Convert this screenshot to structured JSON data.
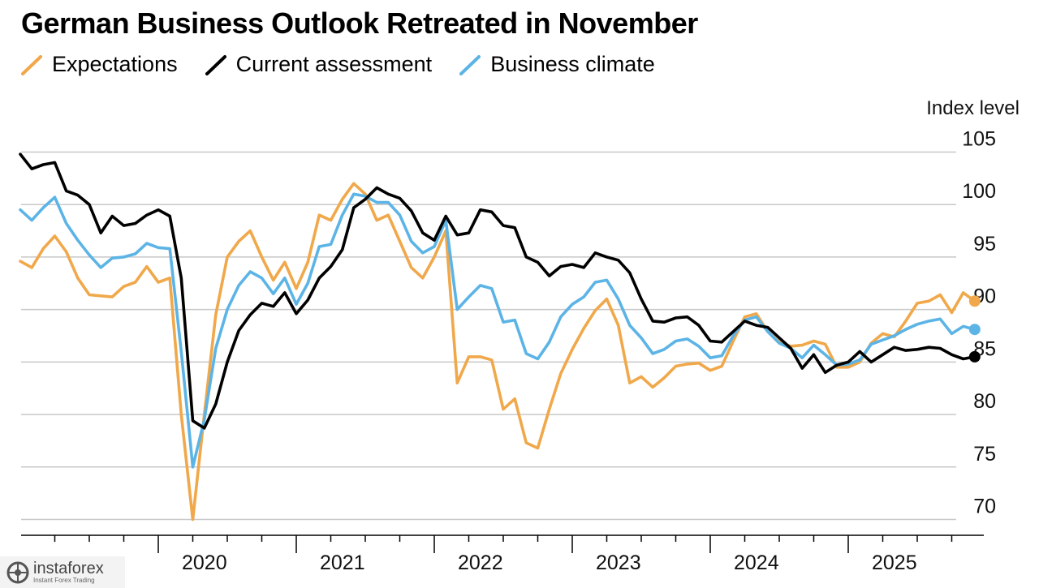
{
  "chart_data": {
    "type": "line",
    "title": "German Business Outlook Retreated in November",
    "ylabel": "Index level",
    "ylim": [
      68,
      106
    ],
    "yticks": [
      70,
      75,
      80,
      85,
      90,
      95,
      100,
      105
    ],
    "x_start": "2019-01",
    "x_ticks": [
      "2020",
      "2021",
      "2022",
      "2023",
      "2024",
      "2025"
    ],
    "grid": true,
    "legend_position": "top-left",
    "series": [
      {
        "name": "Expectations",
        "color": "#f0a84a",
        "values": [
          94.6,
          94.0,
          95.8,
          97.0,
          95.5,
          93.0,
          91.4,
          91.3,
          91.2,
          92.2,
          92.6,
          94.1,
          92.6,
          93.0,
          80.0,
          70.0,
          80.0,
          89.5,
          95.0,
          96.5,
          97.5,
          95.0,
          92.8,
          94.5,
          92.0,
          94.5,
          99.0,
          98.5,
          100.5,
          102.0,
          101.0,
          98.5,
          99.0,
          96.5,
          94.0,
          93.0,
          95.0,
          97.5,
          83.0,
          85.5,
          85.5,
          85.2,
          80.5,
          81.5,
          77.3,
          76.8,
          80.5,
          83.9,
          86.2,
          88.2,
          89.9,
          91.0,
          88.5,
          83.0,
          83.6,
          82.6,
          83.5,
          84.6,
          84.8,
          84.9,
          84.2,
          84.6,
          87.0,
          89.3,
          89.6,
          87.9,
          86.9,
          86.5,
          86.6,
          87.0,
          86.7,
          84.5,
          84.5,
          85.0,
          86.8,
          87.7,
          87.4,
          88.9,
          90.6,
          90.8,
          91.4,
          89.7,
          91.6,
          90.8
        ]
      },
      {
        "name": "Current assessment",
        "color": "#000000",
        "values": [
          104.8,
          103.4,
          103.8,
          104.0,
          101.3,
          100.9,
          100.0,
          97.3,
          98.9,
          98.0,
          98.2,
          99.0,
          99.5,
          98.9,
          93.0,
          79.4,
          78.7,
          81.0,
          85.0,
          88.0,
          89.5,
          90.6,
          90.3,
          91.6,
          89.6,
          90.9,
          93.0,
          94.1,
          95.7,
          99.7,
          100.5,
          101.6,
          101.0,
          100.6,
          99.4,
          97.3,
          96.6,
          98.9,
          97.1,
          97.3,
          99.5,
          99.3,
          98.0,
          97.8,
          95.0,
          94.5,
          93.2,
          94.1,
          94.3,
          94.0,
          95.4,
          95.0,
          94.7,
          93.5,
          91.0,
          88.9,
          88.8,
          89.2,
          89.3,
          88.5,
          87.0,
          86.9,
          87.9,
          88.9,
          88.5,
          88.3,
          87.3,
          86.3,
          84.4,
          85.7,
          84.0,
          84.7,
          85.0,
          86.0,
          85.0,
          85.7,
          86.4,
          86.1,
          86.2,
          86.4,
          86.3,
          85.7,
          85.3,
          85.5
        ]
      },
      {
        "name": "Business climate",
        "color": "#5cb4e6",
        "values": [
          99.5,
          98.5,
          99.7,
          100.7,
          98.2,
          96.6,
          95.2,
          94.0,
          94.9,
          95.0,
          95.3,
          96.3,
          95.9,
          95.8,
          86.0,
          75.0,
          79.5,
          86.3,
          90.0,
          92.3,
          93.6,
          93.0,
          91.5,
          93.0,
          90.5,
          92.5,
          96.0,
          96.2,
          99.0,
          101.0,
          100.8,
          100.2,
          100.2,
          99.0,
          96.5,
          95.4,
          96.0,
          98.5,
          90.0,
          91.2,
          92.3,
          92.0,
          88.8,
          89.0,
          85.8,
          85.3,
          86.9,
          89.3,
          90.5,
          91.2,
          92.6,
          92.8,
          91.0,
          88.5,
          87.3,
          85.8,
          86.2,
          87.0,
          87.2,
          86.5,
          85.4,
          85.6,
          87.5,
          89.0,
          89.3,
          87.9,
          86.8,
          86.3,
          85.4,
          86.6,
          85.7,
          84.7,
          84.8,
          85.2,
          86.7,
          87.1,
          87.5,
          88.1,
          88.6,
          88.9,
          89.1,
          87.7,
          88.4,
          88.1
        ]
      }
    ]
  },
  "watermark": {
    "brand": "instaforex",
    "tagline": "Instant Forex Trading"
  }
}
